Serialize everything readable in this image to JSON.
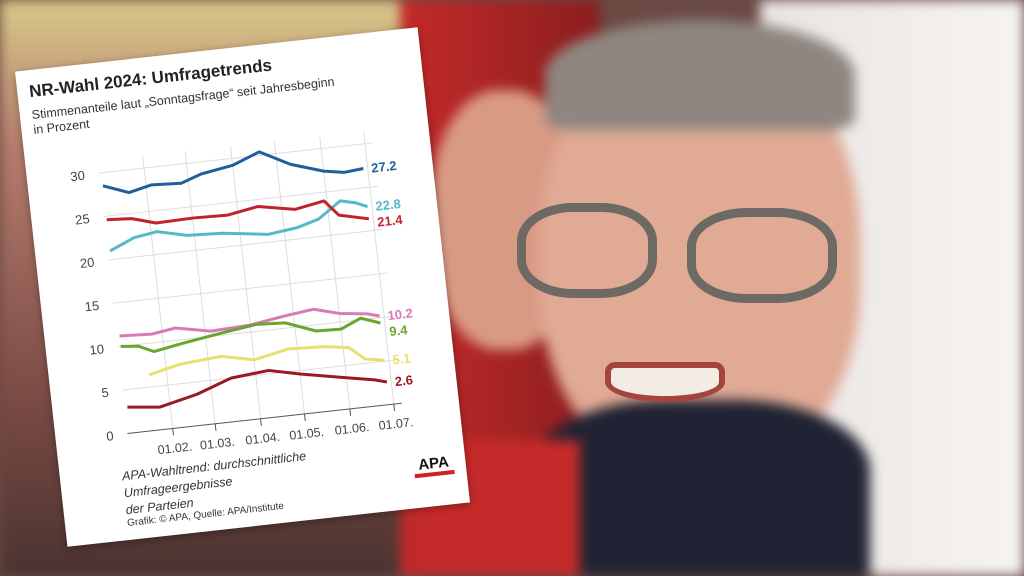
{
  "chart_data": {
    "type": "line",
    "title": "NR-Wahl 2024: Umfragetrends",
    "subtitle": "Stimmenanteile laut „Sonntagsfrage“ seit Jahresbeginn in Prozent",
    "subtitle_lines": [
      "Stimmenanteile laut „Sonntagsfrage“ seit Jahresbeginn",
      "in Prozent"
    ],
    "xlabel": "",
    "ylabel": "",
    "ylim": [
      0,
      30
    ],
    "yticks": [
      "0",
      "5",
      "10",
      "15",
      "20",
      "25",
      "30"
    ],
    "xticks": [
      "01.02.",
      "01.03.",
      "01.04.",
      "01.05.",
      "01.06.",
      "01.07."
    ],
    "grid": true,
    "series": [
      {
        "end_label": "27.2",
        "color": "#1f5f9a",
        "points": [
          [
            "2024-01-03",
            28.5
          ],
          [
            "2024-01-20",
            27.4
          ],
          [
            "2024-02-05",
            28
          ],
          [
            "2024-02-25",
            27.8
          ],
          [
            "2024-03-10",
            28.6
          ],
          [
            "2024-04-01",
            29.2
          ],
          [
            "2024-04-20",
            30.4
          ],
          [
            "2024-05-10",
            28.6
          ],
          [
            "2024-06-01",
            27.4
          ],
          [
            "2024-06-15",
            27
          ],
          [
            "2024-06-28",
            27.2
          ]
        ]
      },
      {
        "end_label": "22.8",
        "color": "#56b9c8",
        "points": [
          [
            "2024-01-03",
            21
          ],
          [
            "2024-01-20",
            22.2
          ],
          [
            "2024-02-05",
            22.6
          ],
          [
            "2024-02-25",
            21.8
          ],
          [
            "2024-03-20",
            21.6
          ],
          [
            "2024-04-20",
            20.9
          ],
          [
            "2024-05-10",
            21.3
          ],
          [
            "2024-05-25",
            22
          ],
          [
            "2024-06-10",
            23.8
          ],
          [
            "2024-06-20",
            23.4
          ],
          [
            "2024-06-28",
            22.8
          ]
        ]
      },
      {
        "end_label": "21.4",
        "color": "#c0222e",
        "points": [
          [
            "2024-01-03",
            24.6
          ],
          [
            "2024-01-20",
            24.4
          ],
          [
            "2024-02-05",
            23.6
          ],
          [
            "2024-03-01",
            23.7
          ],
          [
            "2024-03-25",
            23.6
          ],
          [
            "2024-04-15",
            24.2
          ],
          [
            "2024-05-10",
            23.4
          ],
          [
            "2024-05-30",
            24
          ],
          [
            "2024-06-08",
            22.2
          ],
          [
            "2024-06-28",
            21.4
          ]
        ]
      },
      {
        "end_label": "10.2",
        "color": "#d97ab6",
        "points": [
          [
            "2024-01-03",
            11.2
          ],
          [
            "2024-01-25",
            11
          ],
          [
            "2024-02-10",
            11.4
          ],
          [
            "2024-03-05",
            10.6
          ],
          [
            "2024-04-01",
            10.8
          ],
          [
            "2024-04-25",
            11.4
          ],
          [
            "2024-05-15",
            11.8
          ],
          [
            "2024-06-01",
            11
          ],
          [
            "2024-06-20",
            10.6
          ],
          [
            "2024-06-28",
            10.2
          ]
        ]
      },
      {
        "end_label": "9.4",
        "color": "#6aa52e",
        "points": [
          [
            "2024-01-03",
            10
          ],
          [
            "2024-01-15",
            9.8
          ],
          [
            "2024-01-25",
            9
          ],
          [
            "2024-02-15",
            9.6
          ],
          [
            "2024-03-10",
            10.2
          ],
          [
            "2024-04-05",
            10.8
          ],
          [
            "2024-04-25",
            10.6
          ],
          [
            "2024-05-15",
            9.3
          ],
          [
            "2024-06-01",
            9.2
          ],
          [
            "2024-06-15",
            10.2
          ],
          [
            "2024-06-28",
            9.4
          ]
        ]
      },
      {
        "end_label": "5.1",
        "color": "#e6e070",
        "points": [
          [
            "2024-01-20",
            6.4
          ],
          [
            "2024-02-10",
            7.2
          ],
          [
            "2024-03-10",
            7.6
          ],
          [
            "2024-04-01",
            6.8
          ],
          [
            "2024-04-25",
            7.6
          ],
          [
            "2024-05-20",
            7.4
          ],
          [
            "2024-06-05",
            7
          ],
          [
            "2024-06-15",
            5.5
          ],
          [
            "2024-06-28",
            5.1
          ]
        ]
      },
      {
        "end_label": "2.6",
        "color": "#9a1a22",
        "points": [
          [
            "2024-01-03",
            3
          ],
          [
            "2024-01-25",
            2.6
          ],
          [
            "2024-02-20",
            3.6
          ],
          [
            "2024-03-15",
            5
          ],
          [
            "2024-04-10",
            5.4
          ],
          [
            "2024-05-01",
            4.6
          ],
          [
            "2024-06-01",
            3.6
          ],
          [
            "2024-06-20",
            3
          ],
          [
            "2024-06-28",
            2.6
          ]
        ]
      }
    ]
  },
  "footer": {
    "note_lines": [
      "APA-Wahltrend: durchschnittliche Umfrageergebnisse",
      "der Parteien"
    ],
    "credit": "Grafik: © APA, Quelle: APA/Institute",
    "logo": "APA"
  }
}
